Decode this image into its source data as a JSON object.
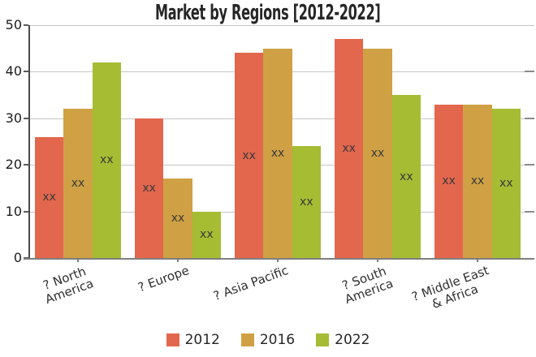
{
  "chart_data": {
    "type": "bar",
    "title": "Market by Regions [2012-2022]",
    "categories": [
      "? North America",
      "? Europe",
      "? Asia Pacific",
      "? South America",
      "? Middle East & Africa"
    ],
    "category_lines": [
      [
        "? North",
        "America"
      ],
      [
        "? Europe"
      ],
      [
        "? Asia Pacific"
      ],
      [
        "? South",
        "America"
      ],
      [
        "? Middle East",
        "& Africa"
      ]
    ],
    "series": [
      {
        "name": "2012",
        "color": "#e2674d",
        "values": [
          26,
          30,
          44,
          47,
          33
        ]
      },
      {
        "name": "2016",
        "color": "#cfa144",
        "values": [
          32,
          17,
          45,
          45,
          33
        ]
      },
      {
        "name": "2022",
        "color": "#a6bc33",
        "values": [
          42,
          10,
          24,
          35,
          32
        ]
      }
    ],
    "bar_label": "xx",
    "xlabel": "",
    "ylabel": "",
    "y_ticks": [
      0,
      10,
      20,
      30,
      40,
      50
    ],
    "ylim": [
      0,
      50
    ],
    "grid": true,
    "legend_position": "bottom"
  },
  "colors": {
    "background": "#ffffff",
    "gridline": "#c6c6c6",
    "axis": "#7f7f7f",
    "spine": "#4a4a4a",
    "bar_label_text": "#3a3a3a",
    "tick_label_text": "#1c1c1c"
  }
}
